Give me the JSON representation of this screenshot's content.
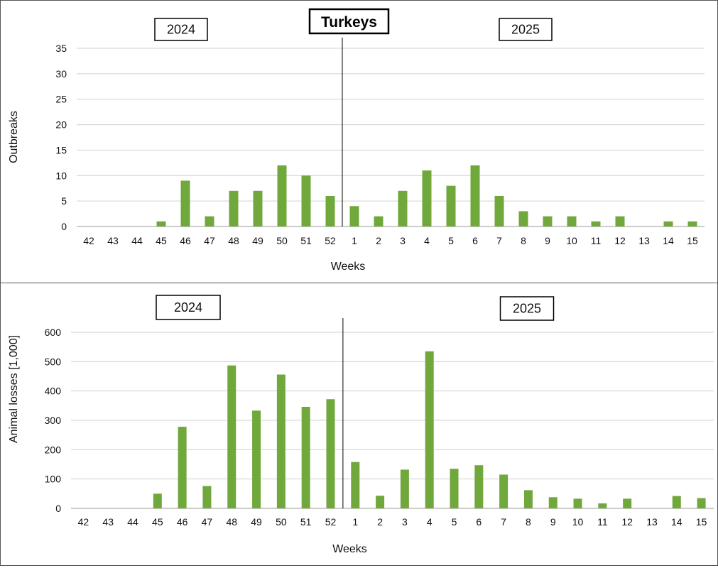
{
  "title": "Turkeys",
  "colors": {
    "bar": "#70a83b",
    "grid": "#d0d0d0",
    "divider": "#000000",
    "panel_border": "#555555"
  },
  "chart_data": [
    {
      "type": "bar",
      "title": "Turkeys",
      "xlabel": "Weeks",
      "ylabel": "Outbreaks",
      "ylim": [
        0,
        35
      ],
      "yticks": [
        0,
        5,
        10,
        15,
        20,
        25,
        30,
        35
      ],
      "grid": true,
      "year_labels": [
        "2024",
        "2025"
      ],
      "categories": [
        "42",
        "43",
        "44",
        "45",
        "46",
        "47",
        "48",
        "49",
        "50",
        "51",
        "52",
        "1",
        "2",
        "3",
        "4",
        "5",
        "6",
        "7",
        "8",
        "9",
        "10",
        "11",
        "12",
        "13",
        "14",
        "15"
      ],
      "values": [
        0,
        0,
        0,
        1,
        9,
        2,
        7,
        7,
        12,
        10,
        6,
        4,
        2,
        7,
        11,
        8,
        12,
        6,
        3,
        2,
        2,
        1,
        2,
        0,
        1,
        1
      ]
    },
    {
      "type": "bar",
      "xlabel": "Weeks",
      "ylabel": "Animal losses [1,000]",
      "ylim": [
        0,
        600
      ],
      "yticks": [
        0,
        100,
        200,
        300,
        400,
        500,
        600
      ],
      "grid": true,
      "year_labels": [
        "2024",
        "2025"
      ],
      "categories": [
        "42",
        "43",
        "44",
        "45",
        "46",
        "47",
        "48",
        "49",
        "50",
        "51",
        "52",
        "1",
        "2",
        "3",
        "4",
        "5",
        "6",
        "7",
        "8",
        "9",
        "10",
        "11",
        "12",
        "13",
        "14",
        "15"
      ],
      "values": [
        0,
        0,
        0,
        50,
        278,
        76,
        487,
        333,
        456,
        346,
        372,
        158,
        43,
        132,
        535,
        135,
        147,
        115,
        62,
        38,
        33,
        17,
        33,
        0,
        42,
        35
      ]
    }
  ]
}
